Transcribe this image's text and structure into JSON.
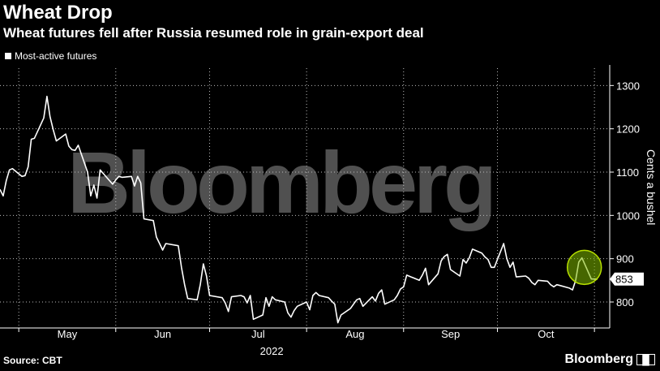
{
  "title": "Wheat Drop",
  "subtitle": "Wheat futures fell after Russia resumed role in grain-export deal",
  "legend": "Most-active futures",
  "source": "Source: CBT",
  "brand": "Bloomberg",
  "watermark": "Bloomberg",
  "chart_data": {
    "type": "line",
    "title": "Wheat Drop",
    "subtitle": "Wheat futures fell after Russia resumed role in grain-export deal",
    "xlabel": "2022",
    "ylabel": "Cents a bushel",
    "x_ticks": [
      "May",
      "Jun",
      "Jul",
      "Aug",
      "Sep",
      "Oct"
    ],
    "y_ticks": [
      800,
      900,
      1000,
      1100,
      1200,
      1300
    ],
    "ylim": [
      740,
      1340
    ],
    "grid": true,
    "legend_position": "top-left",
    "last_value_label": "853",
    "series": [
      {
        "name": "Most-active futures",
        "color": "#ffffff",
        "dates": [
          "2022-04-25",
          "2022-04-26",
          "2022-04-27",
          "2022-04-28",
          "2022-04-29",
          "2022-05-02",
          "2022-05-03",
          "2022-05-04",
          "2022-05-05",
          "2022-05-06",
          "2022-05-09",
          "2022-05-10",
          "2022-05-11",
          "2022-05-12",
          "2022-05-13",
          "2022-05-16",
          "2022-05-17",
          "2022-05-18",
          "2022-05-19",
          "2022-05-20",
          "2022-05-23",
          "2022-05-24",
          "2022-05-25",
          "2022-05-26",
          "2022-05-27",
          "2022-05-31",
          "2022-06-01",
          "2022-06-02",
          "2022-06-03",
          "2022-06-06",
          "2022-06-07",
          "2022-06-08",
          "2022-06-09",
          "2022-06-10",
          "2022-06-13",
          "2022-06-14",
          "2022-06-15",
          "2022-06-16",
          "2022-06-17",
          "2022-06-21",
          "2022-06-22",
          "2022-06-23",
          "2022-06-24",
          "2022-06-27",
          "2022-06-28",
          "2022-06-29",
          "2022-06-30",
          "2022-07-01",
          "2022-07-05",
          "2022-07-06",
          "2022-07-07",
          "2022-07-08",
          "2022-07-11",
          "2022-07-12",
          "2022-07-13",
          "2022-07-14",
          "2022-07-15",
          "2022-07-18",
          "2022-07-19",
          "2022-07-20",
          "2022-07-21",
          "2022-07-22",
          "2022-07-25",
          "2022-07-26",
          "2022-07-27",
          "2022-07-28",
          "2022-07-29",
          "2022-08-01",
          "2022-08-02",
          "2022-08-03",
          "2022-08-04",
          "2022-08-05",
          "2022-08-08",
          "2022-08-09",
          "2022-08-10",
          "2022-08-11",
          "2022-08-12",
          "2022-08-15",
          "2022-08-16",
          "2022-08-17",
          "2022-08-18",
          "2022-08-19",
          "2022-08-22",
          "2022-08-23",
          "2022-08-24",
          "2022-08-25",
          "2022-08-26",
          "2022-08-29",
          "2022-08-30",
          "2022-08-31",
          "2022-09-01",
          "2022-09-02",
          "2022-09-06",
          "2022-09-07",
          "2022-09-08",
          "2022-09-09",
          "2022-09-12",
          "2022-09-13",
          "2022-09-14",
          "2022-09-15",
          "2022-09-16",
          "2022-09-19",
          "2022-09-20",
          "2022-09-21",
          "2022-09-22",
          "2022-09-23",
          "2022-09-26",
          "2022-09-27",
          "2022-09-28",
          "2022-09-29",
          "2022-09-30",
          "2022-10-03",
          "2022-10-04",
          "2022-10-05",
          "2022-10-06",
          "2022-10-07",
          "2022-10-10",
          "2022-10-11",
          "2022-10-12",
          "2022-10-13",
          "2022-10-14",
          "2022-10-17",
          "2022-10-18",
          "2022-10-19",
          "2022-10-20",
          "2022-10-21",
          "2022-10-24",
          "2022-10-25",
          "2022-10-26",
          "2022-10-27",
          "2022-10-28",
          "2022-10-31",
          "2022-11-01",
          "2022-11-02"
        ],
        "values": [
          1060,
          1045,
          1080,
          1105,
          1108,
          1090,
          1092,
          1112,
          1176,
          1178,
          1225,
          1275,
          1228,
          1198,
          1172,
          1188,
          1160,
          1152,
          1150,
          1162,
          1100,
          1045,
          1070,
          1040,
          1105,
          1072,
          1082,
          1090,
          1088,
          1090,
          1068,
          1090,
          1075,
          992,
          988,
          950,
          935,
          920,
          935,
          930,
          880,
          840,
          808,
          805,
          840,
          888,
          860,
          815,
          810,
          798,
          778,
          812,
          815,
          812,
          798,
          815,
          760,
          770,
          810,
          790,
          812,
          805,
          800,
          775,
          765,
          780,
          790,
          800,
          782,
          815,
          822,
          815,
          810,
          802,
          795,
          752,
          770,
          785,
          795,
          805,
          808,
          790,
          812,
          802,
          820,
          828,
          795,
          805,
          815,
          830,
          835,
          862,
          850,
          862,
          878,
          840,
          865,
          895,
          905,
          910,
          875,
          860,
          898,
          890,
          902,
          922,
          913,
          904,
          898,
          880,
          880,
          935,
          900,
          880,
          892,
          858,
          860,
          855,
          845,
          840,
          850,
          848,
          840,
          835,
          840,
          838,
          832,
          828,
          850,
          892,
          902,
          853,
          853,
          853
        ]
      }
    ]
  }
}
